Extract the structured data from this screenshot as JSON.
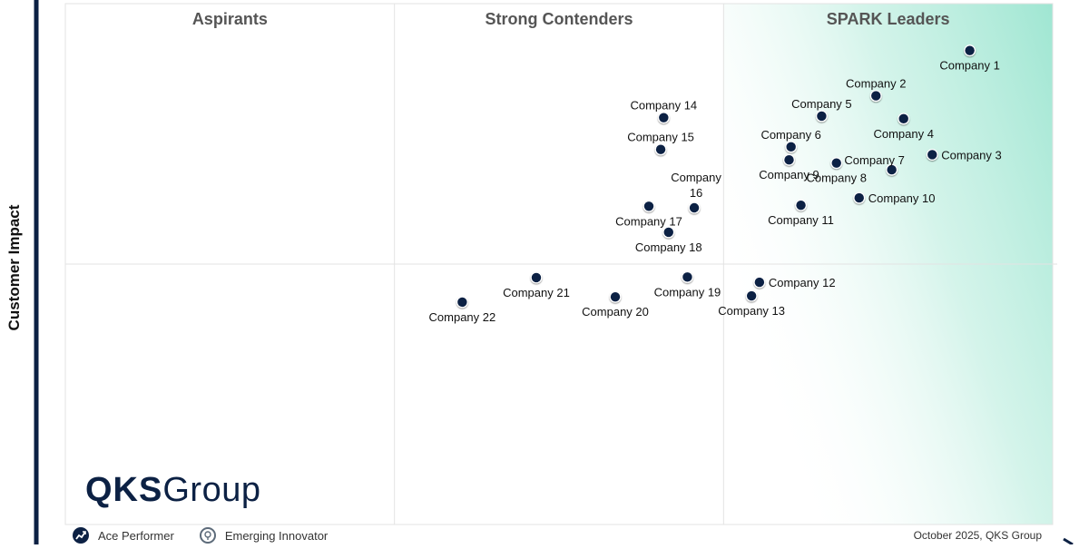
{
  "chart_data": {
    "type": "scatter",
    "title": "",
    "xlabel": "",
    "ylabel": "Customer Impact",
    "quadrant_labels": [
      "Aspirants",
      "Strong Contenders",
      "SPARK Leaders"
    ],
    "xlim": [
      0,
      100
    ],
    "ylim": [
      0,
      100
    ],
    "grid": true,
    "points": [
      {
        "label": "Company 1",
        "x": 91.6,
        "y": 91.0,
        "label_pos": "below"
      },
      {
        "label": "Company 2",
        "x": 82.1,
        "y": 82.3,
        "label_pos": "above"
      },
      {
        "label": "Company 3",
        "x": 87.8,
        "y": 71.0,
        "label_pos": "right"
      },
      {
        "label": "Company 4",
        "x": 84.9,
        "y": 77.9,
        "label_pos": "below"
      },
      {
        "label": "Company 5",
        "x": 76.6,
        "y": 78.4,
        "label_pos": "above"
      },
      {
        "label": "Company 6",
        "x": 73.5,
        "y": 72.5,
        "label_pos": "above"
      },
      {
        "label": "Company 7",
        "x": 83.7,
        "y": 68.1,
        "label_pos": "above-left"
      },
      {
        "label": "Company 8",
        "x": 78.1,
        "y": 69.4,
        "label_pos": "below"
      },
      {
        "label": "Company 9",
        "x": 73.3,
        "y": 70.0,
        "label_pos": "below"
      },
      {
        "label": "Company 10",
        "x": 80.4,
        "y": 62.7,
        "label_pos": "right"
      },
      {
        "label": "Company 11",
        "x": 74.5,
        "y": 61.3,
        "label_pos": "below"
      },
      {
        "label": "Company 12",
        "x": 70.3,
        "y": 46.5,
        "label_pos": "right"
      },
      {
        "label": "Company 13",
        "x": 69.5,
        "y": 43.9,
        "label_pos": "below"
      },
      {
        "label": "Company 14",
        "x": 60.6,
        "y": 78.1,
        "label_pos": "above"
      },
      {
        "label": "Company 15",
        "x": 60.3,
        "y": 72.0,
        "label_pos": "above"
      },
      {
        "label": "Company 16",
        "x": 63.7,
        "y": 60.8,
        "label_pos": "above-2line"
      },
      {
        "label": "Company 17",
        "x": 59.1,
        "y": 61.1,
        "label_pos": "below"
      },
      {
        "label": "Company 18",
        "x": 61.1,
        "y": 56.1,
        "label_pos": "below"
      },
      {
        "label": "Company 19",
        "x": 63.0,
        "y": 47.5,
        "label_pos": "below"
      },
      {
        "label": "Company 20",
        "x": 55.7,
        "y": 43.7,
        "label_pos": "below"
      },
      {
        "label": "Company 21",
        "x": 47.7,
        "y": 47.4,
        "label_pos": "below"
      },
      {
        "label": "Company 22",
        "x": 40.2,
        "y": 42.7,
        "label_pos": "below"
      }
    ]
  },
  "logo": {
    "bold": "QKS",
    "regular": "Group"
  },
  "legend": [
    {
      "label": "Ace Performer",
      "icon": "ace-performer-icon"
    },
    {
      "label": "Emerging Innovator",
      "icon": "emerging-innovator-icon"
    }
  ],
  "footer_note": "October 2025, QKS Group",
  "colors": {
    "dot": "#0c2144",
    "leader_gradient": "#9fe6d2",
    "quadrant_title": "#555555",
    "axis": "#0c2144"
  }
}
